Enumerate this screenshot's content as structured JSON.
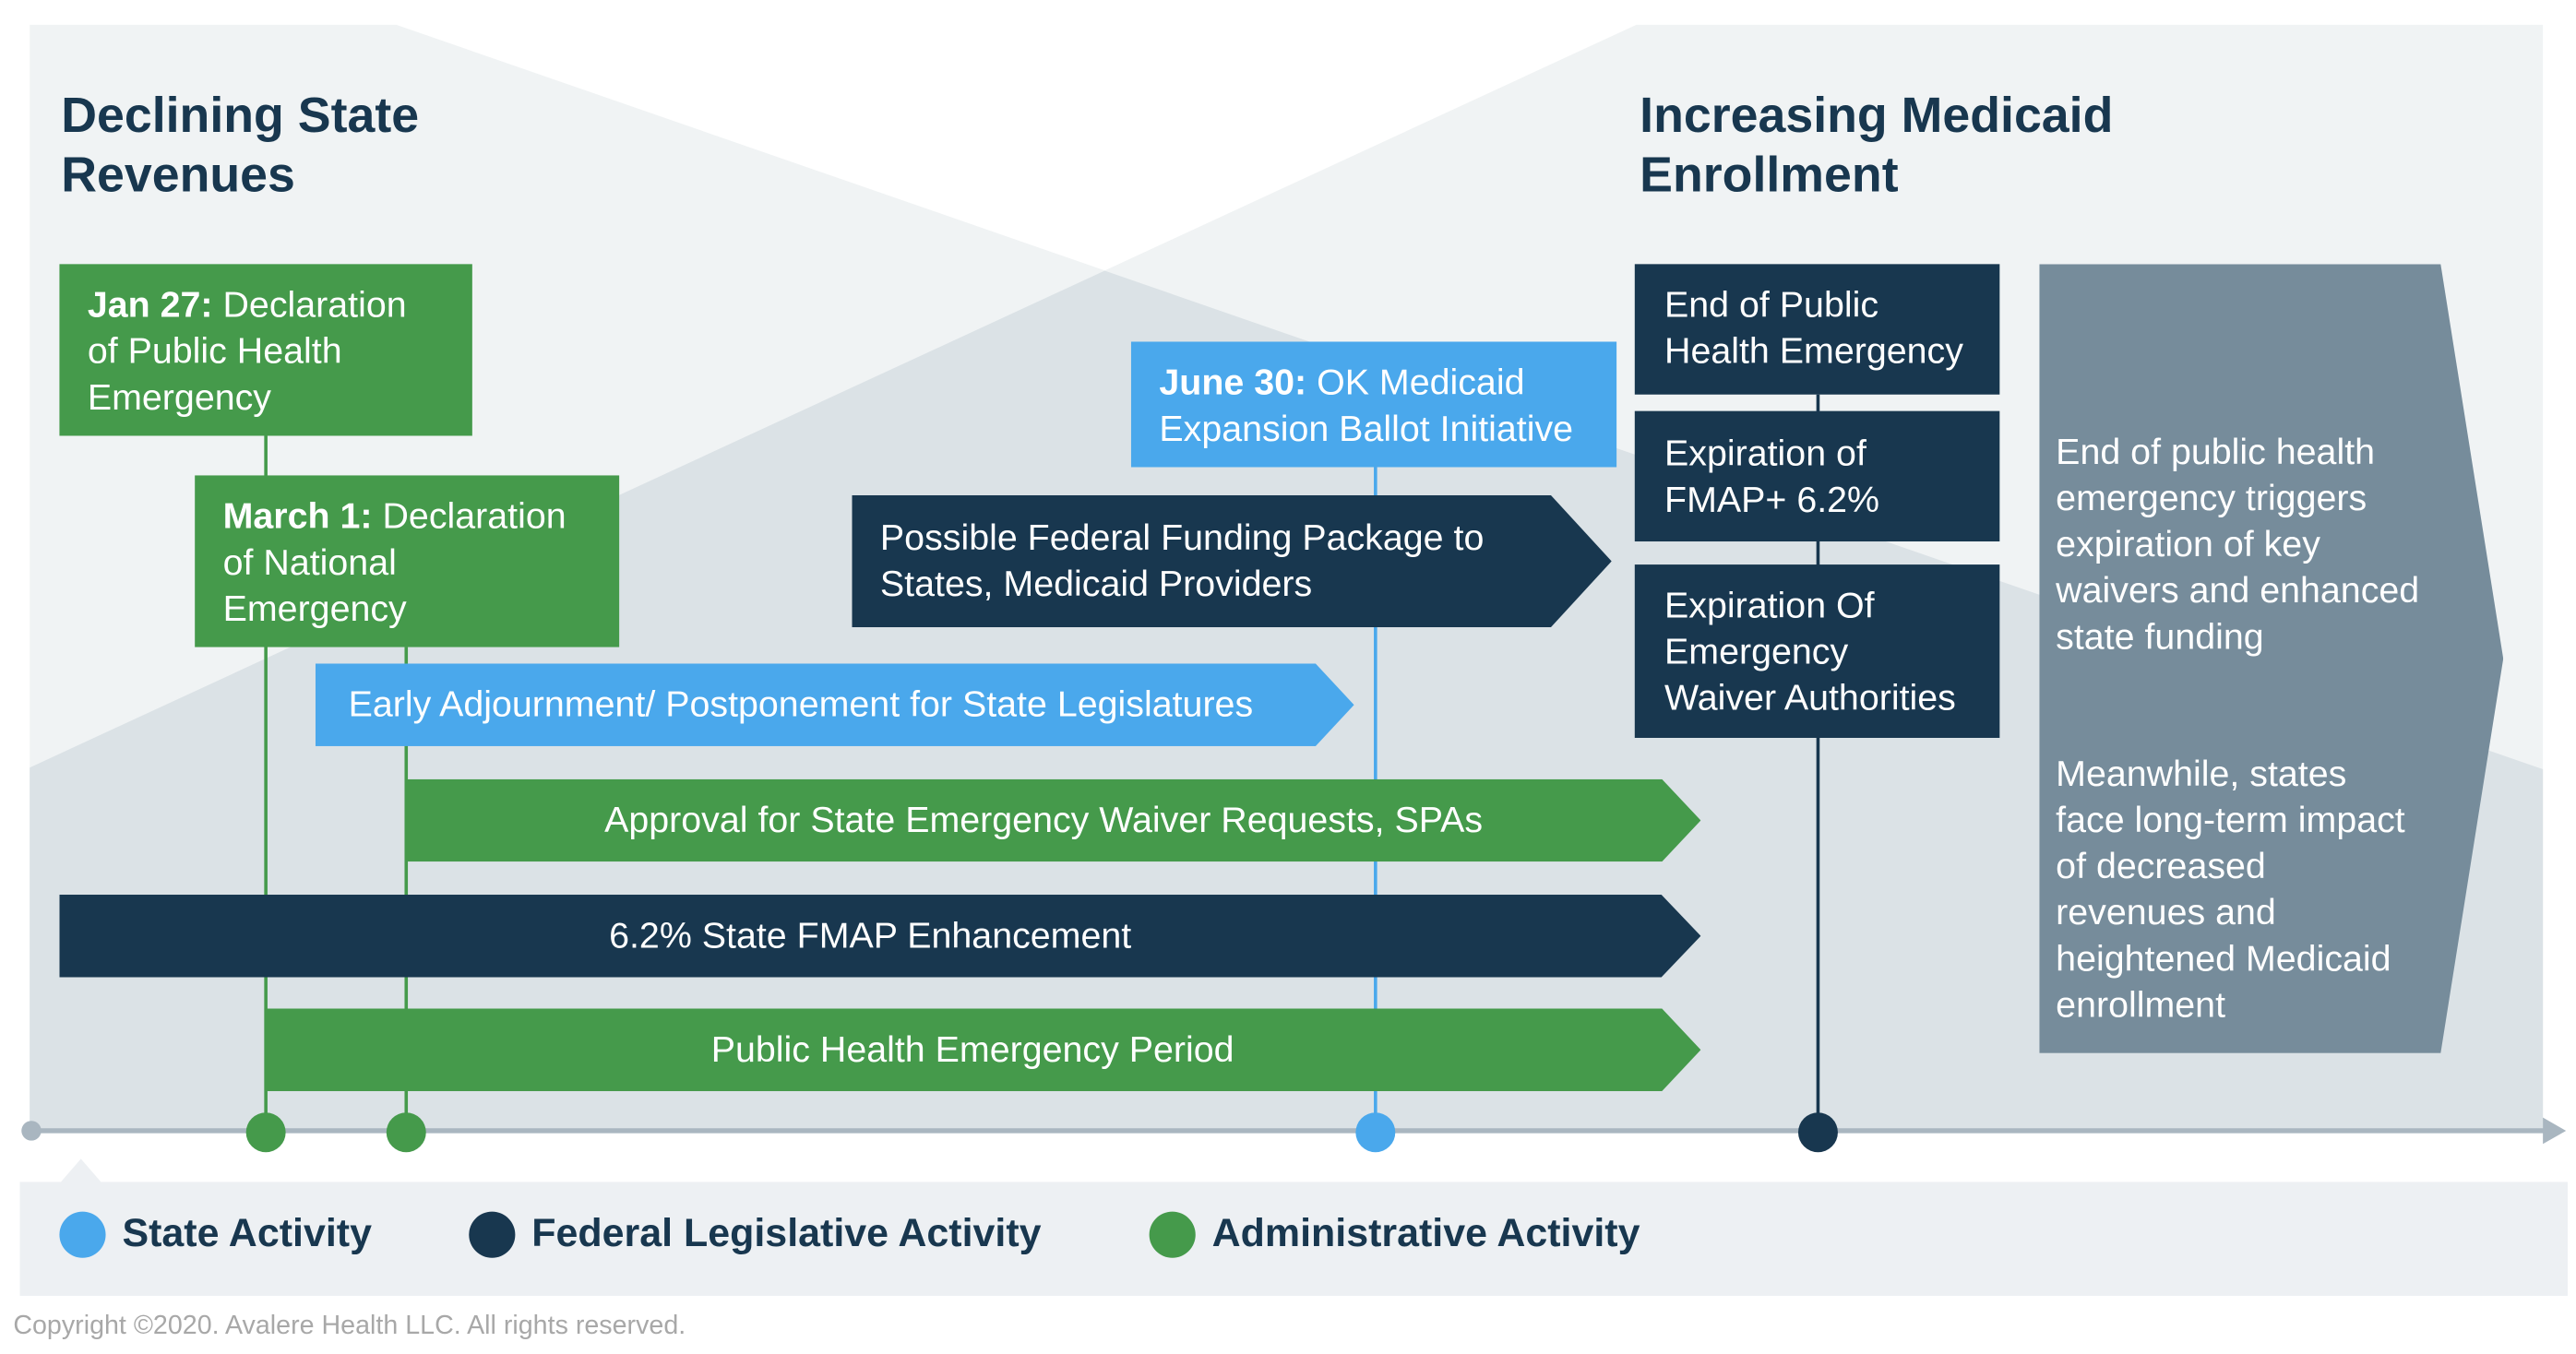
{
  "colors": {
    "green": "#459a4b",
    "dark_navy": "#18374f",
    "light_blue": "#4aa8ec",
    "slate": "#768c9b",
    "panel_light": "#f0f3f4",
    "panel_overlap": "#dbe2e6"
  },
  "headers": {
    "left": "Declining State\nRevenues",
    "right": "Increasing Medicaid\nEnrollment"
  },
  "events": {
    "jan27": {
      "bold": "Jan 27:",
      "text": " Declaration\nof Public Health\nEmergency"
    },
    "march1": {
      "bold": "March 1:",
      "text": " Declaration\nof National\nEmergency"
    },
    "june30": {
      "bold": "June 30:",
      "text": " OK Medicaid\nExpansion Ballot Initiative"
    }
  },
  "bars": {
    "federal_package": "Possible Federal Funding Package to\nStates, Medicaid Providers",
    "early_adjournment": "Early Adjournment/ Postponement for State Legislatures",
    "approval": "Approval for State Emergency Waiver Requests, SPAs",
    "fmap": "6.2% State FMAP Enhancement",
    "phe_period": "Public Health Emergency Period"
  },
  "end_stack": [
    "End of Public\nHealth Emergency",
    "Expiration of\nFMAP+ 6.2%",
    "Expiration Of\nEmergency\nWaiver Authorities"
  ],
  "callout": {
    "p1": "End of public health\nemergency triggers\nexpiration of key\nwaivers and enhanced\nstate funding",
    "p2": "Meanwhile, states\nface long-term impact\nof decreased\nrevenues and\nheightened Medicaid\nenrollment"
  },
  "legend": [
    {
      "label": "State Activity",
      "color": "#4aa8ec"
    },
    {
      "label": "Federal Legislative Activity",
      "color": "#18374f"
    },
    {
      "label": "Administrative Activity",
      "color": "#459a4b"
    }
  ],
  "copyright": "Copyright ©2020. Avalere Health LLC. All rights reserved."
}
